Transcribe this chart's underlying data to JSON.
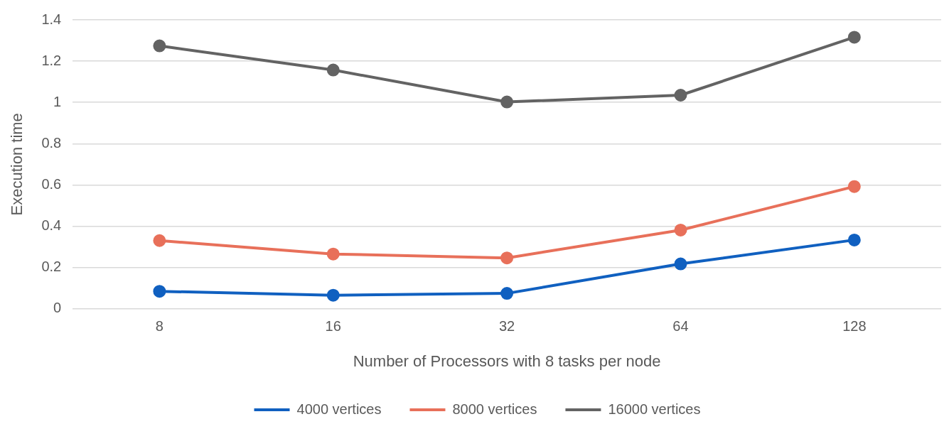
{
  "chart_data": {
    "type": "line",
    "xlabel": "Number of Processors with 8 tasks per node",
    "ylabel": "Execution time",
    "categories": [
      "8",
      "16",
      "32",
      "64",
      "128"
    ],
    "series": [
      {
        "name": "4000 vertices",
        "color": "#1060c0",
        "values": [
          0.084,
          0.065,
          0.074,
          0.217,
          0.333
        ]
      },
      {
        "name": "8000 vertices",
        "color": "#e8705a",
        "values": [
          0.33,
          0.265,
          0.246,
          0.381,
          0.592
        ]
      },
      {
        "name": "16000 vertices",
        "color": "#636363",
        "values": [
          1.274,
          1.157,
          1.002,
          1.035,
          1.316
        ]
      }
    ],
    "ylim": [
      0,
      1.4
    ],
    "yticks": [
      0,
      0.2,
      0.4,
      0.6,
      0.8,
      1,
      1.2,
      1.4
    ],
    "grid": "y",
    "legend": "bottom",
    "marker": "circle",
    "line_style": "solid"
  }
}
